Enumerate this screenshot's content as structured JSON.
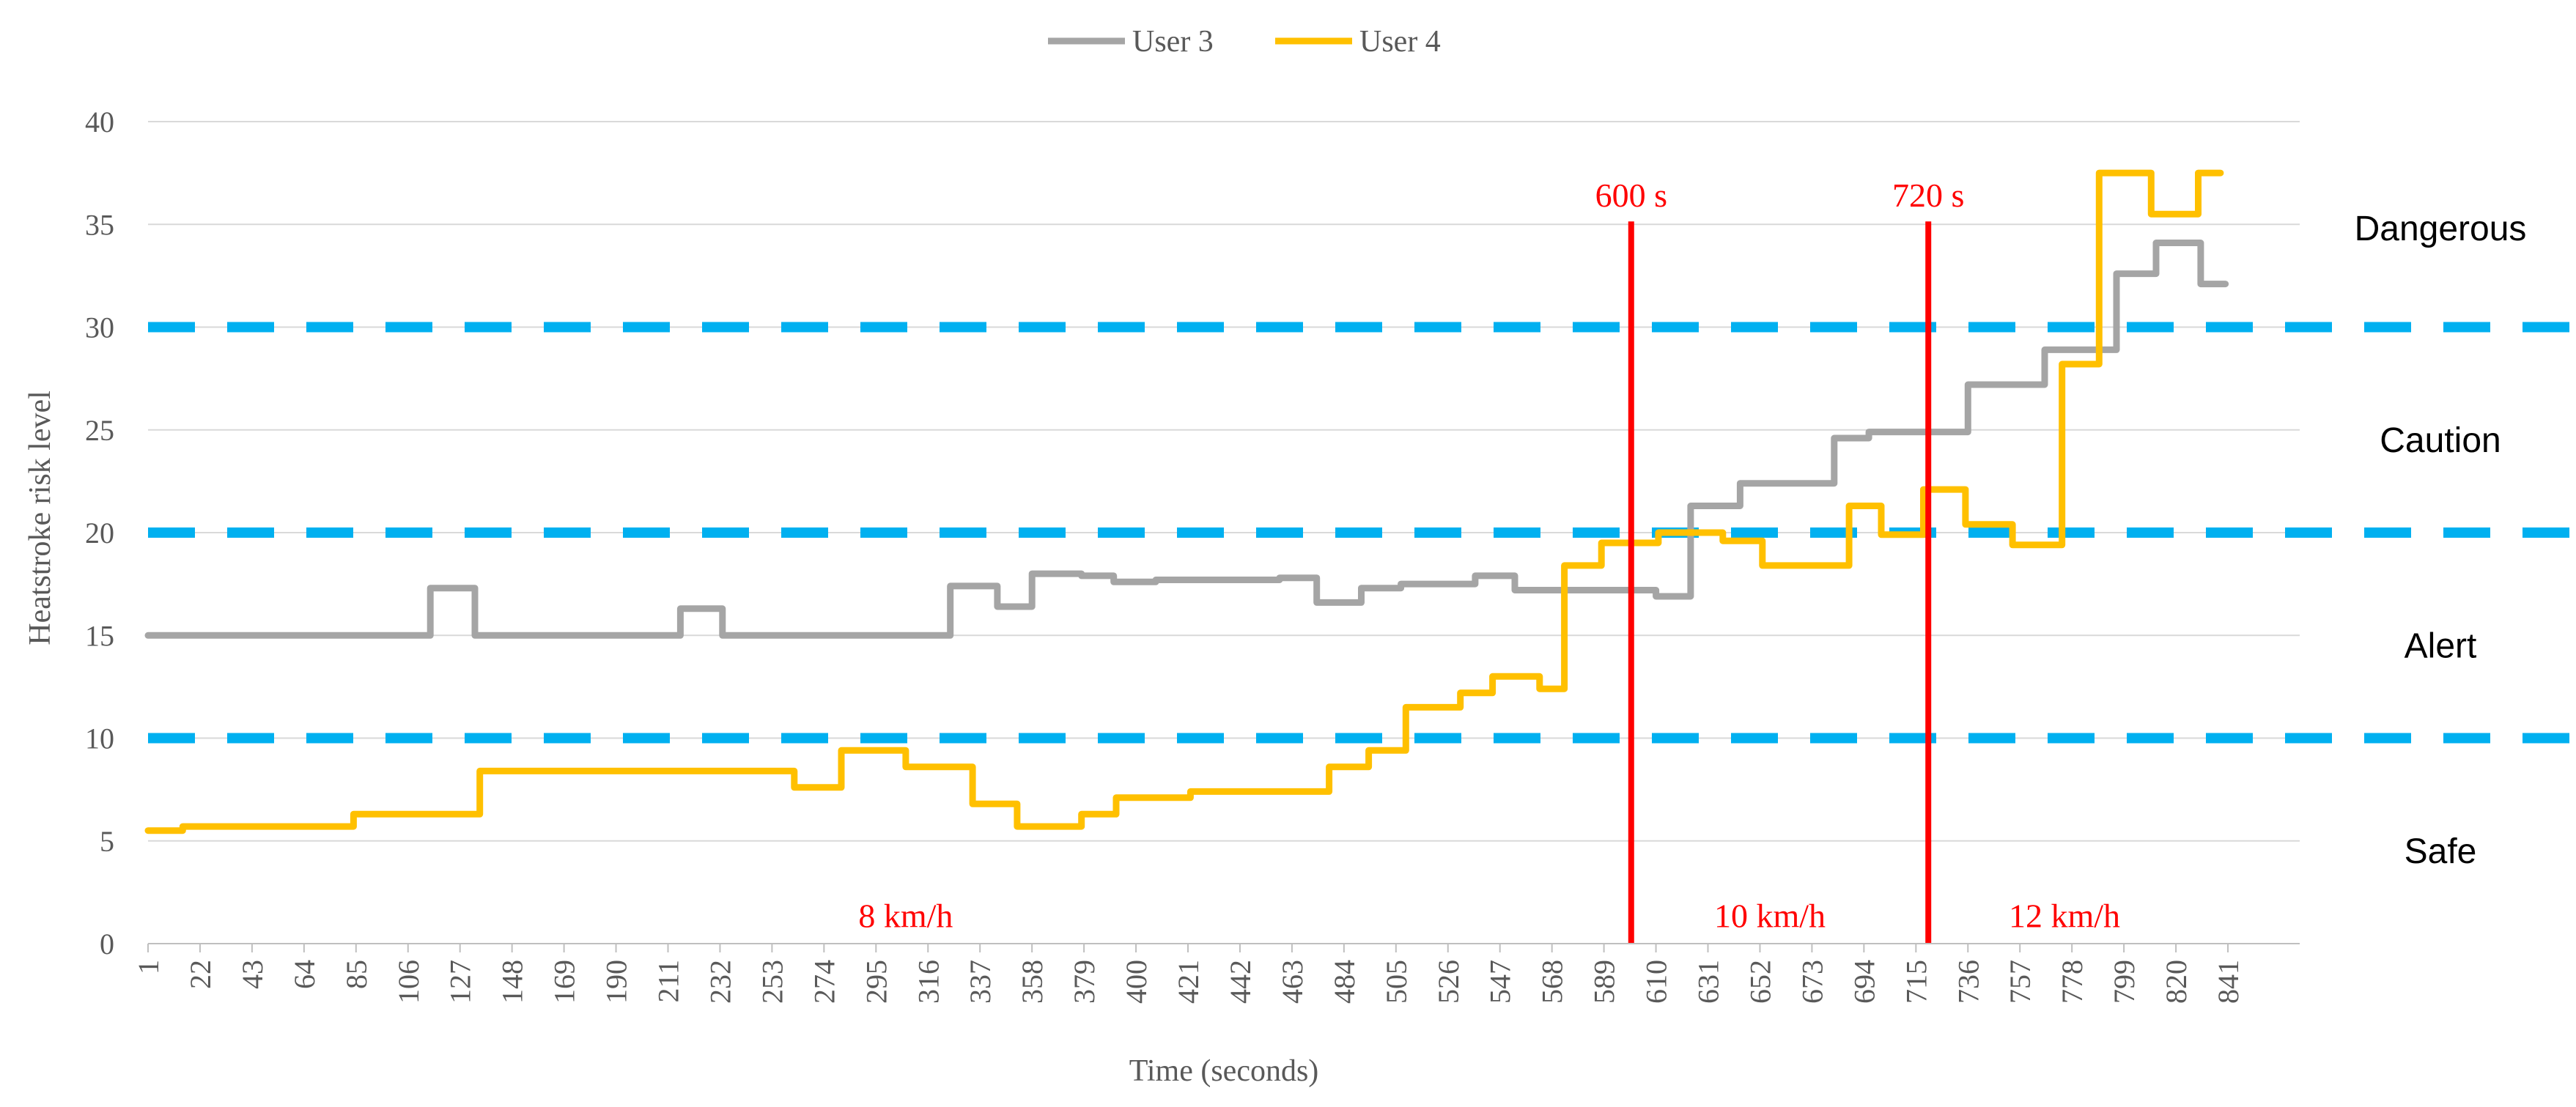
{
  "chart_data": {
    "type": "line",
    "xlabel": "Time (seconds)",
    "ylabel": "Heatstroke risk level",
    "ylim": [
      0,
      40
    ],
    "yticks": [
      0,
      5,
      10,
      15,
      20,
      25,
      30,
      35,
      40
    ],
    "xlim": [
      1,
      870
    ],
    "xticks": [
      1,
      22,
      43,
      64,
      85,
      106,
      127,
      148,
      169,
      190,
      211,
      232,
      253,
      274,
      295,
      316,
      337,
      358,
      379,
      400,
      421,
      442,
      463,
      484,
      505,
      526,
      547,
      568,
      589,
      610,
      631,
      652,
      673,
      694,
      715,
      736,
      757,
      778,
      799,
      820,
      841
    ],
    "grid": true,
    "legend_position": "top",
    "colors": {
      "user3": "#a5a5a5",
      "user4": "#ffc000",
      "threshold": "#00b0f0",
      "marker": "#ff0000",
      "grid": "#d9d9d9"
    },
    "series": [
      {
        "name": "User 3",
        "color": "#a5a5a5",
        "points": [
          [
            1,
            15
          ],
          [
            115,
            15
          ],
          [
            115,
            17.3
          ],
          [
            133,
            17.3
          ],
          [
            133,
            15
          ],
          [
            216,
            15
          ],
          [
            216,
            16.3
          ],
          [
            233,
            16.3
          ],
          [
            233,
            15
          ],
          [
            325,
            15
          ],
          [
            325,
            17.4
          ],
          [
            344,
            17.4
          ],
          [
            344,
            16.4
          ],
          [
            358,
            16.4
          ],
          [
            358,
            18
          ],
          [
            378,
            18
          ],
          [
            378,
            17.9
          ],
          [
            391,
            17.9
          ],
          [
            391,
            17.6
          ],
          [
            408,
            17.6
          ],
          [
            408,
            17.7
          ],
          [
            458,
            17.7
          ],
          [
            458,
            17.8
          ],
          [
            473,
            17.8
          ],
          [
            473,
            16.6
          ],
          [
            491,
            16.6
          ],
          [
            491,
            17.3
          ],
          [
            507,
            17.3
          ],
          [
            507,
            17.5
          ],
          [
            537,
            17.5
          ],
          [
            537,
            17.9
          ],
          [
            553,
            17.9
          ],
          [
            553,
            17.2
          ],
          [
            610,
            17.2
          ],
          [
            610,
            16.9
          ],
          [
            624,
            16.9
          ],
          [
            624,
            21.3
          ],
          [
            644,
            21.3
          ],
          [
            644,
            22.4
          ],
          [
            682,
            22.4
          ],
          [
            682,
            24.6
          ],
          [
            696,
            24.6
          ],
          [
            696,
            24.9
          ],
          [
            736,
            24.9
          ],
          [
            736,
            27.2
          ],
          [
            767,
            27.2
          ],
          [
            767,
            28.9
          ],
          [
            796,
            28.9
          ],
          [
            796,
            32.6
          ],
          [
            812,
            32.6
          ],
          [
            812,
            34.1
          ],
          [
            830,
            34.1
          ],
          [
            830,
            32.1
          ],
          [
            840,
            32.1
          ]
        ]
      },
      {
        "name": "User 4",
        "color": "#ffc000",
        "points": [
          [
            1,
            5.5
          ],
          [
            15,
            5.5
          ],
          [
            15,
            5.7
          ],
          [
            84,
            5.7
          ],
          [
            84,
            6.3
          ],
          [
            135,
            6.3
          ],
          [
            135,
            8.4
          ],
          [
            262,
            8.4
          ],
          [
            262,
            7.6
          ],
          [
            281,
            7.6
          ],
          [
            281,
            9.4
          ],
          [
            307,
            9.4
          ],
          [
            307,
            8.6
          ],
          [
            334,
            8.6
          ],
          [
            334,
            6.8
          ],
          [
            352,
            6.8
          ],
          [
            352,
            5.7
          ],
          [
            378,
            5.7
          ],
          [
            378,
            6.3
          ],
          [
            392,
            6.3
          ],
          [
            392,
            7.1
          ],
          [
            422,
            7.1
          ],
          [
            422,
            7.4
          ],
          [
            478,
            7.4
          ],
          [
            478,
            8.6
          ],
          [
            494,
            8.6
          ],
          [
            494,
            9.4
          ],
          [
            509,
            9.4
          ],
          [
            509,
            11.5
          ],
          [
            531,
            11.5
          ],
          [
            531,
            12.2
          ],
          [
            544,
            12.2
          ],
          [
            544,
            13
          ],
          [
            563,
            13
          ],
          [
            563,
            12.4
          ],
          [
            573,
            12.4
          ],
          [
            573,
            18.4
          ],
          [
            588,
            18.4
          ],
          [
            588,
            19.5
          ],
          [
            611,
            19.5
          ],
          [
            611,
            20
          ],
          [
            637,
            20
          ],
          [
            637,
            19.6
          ],
          [
            653,
            19.6
          ],
          [
            653,
            18.4
          ],
          [
            688,
            18.4
          ],
          [
            688,
            21.3
          ],
          [
            701,
            21.3
          ],
          [
            701,
            19.9
          ],
          [
            718,
            19.9
          ],
          [
            718,
            22.1
          ],
          [
            735,
            22.1
          ],
          [
            735,
            20.4
          ],
          [
            754,
            20.4
          ],
          [
            754,
            19.4
          ],
          [
            774,
            19.4
          ],
          [
            774,
            28.2
          ],
          [
            789,
            28.2
          ],
          [
            789,
            37.5
          ],
          [
            810,
            37.5
          ],
          [
            810,
            35.5
          ],
          [
            829,
            35.5
          ],
          [
            829,
            37.5
          ],
          [
            838,
            37.5
          ]
        ]
      }
    ],
    "thresholds": [
      10,
      20,
      30
    ],
    "zones": [
      {
        "label": "Safe",
        "y": 4.5
      },
      {
        "label": "Alert",
        "y": 14.5
      },
      {
        "label": "Caution",
        "y": 24.5
      },
      {
        "label": "Dangerous",
        "y": 34.8
      }
    ],
    "markers": [
      {
        "x": 600,
        "label": "600 s"
      },
      {
        "x": 720,
        "label": "720 s"
      }
    ],
    "speed_labels": [
      {
        "label": "8 km/h",
        "x": 307,
        "y": 0.8
      },
      {
        "label": "10 km/h",
        "x": 656,
        "y": 0.8
      },
      {
        "label": "12 km/h",
        "x": 775,
        "y": 0.8
      }
    ]
  }
}
